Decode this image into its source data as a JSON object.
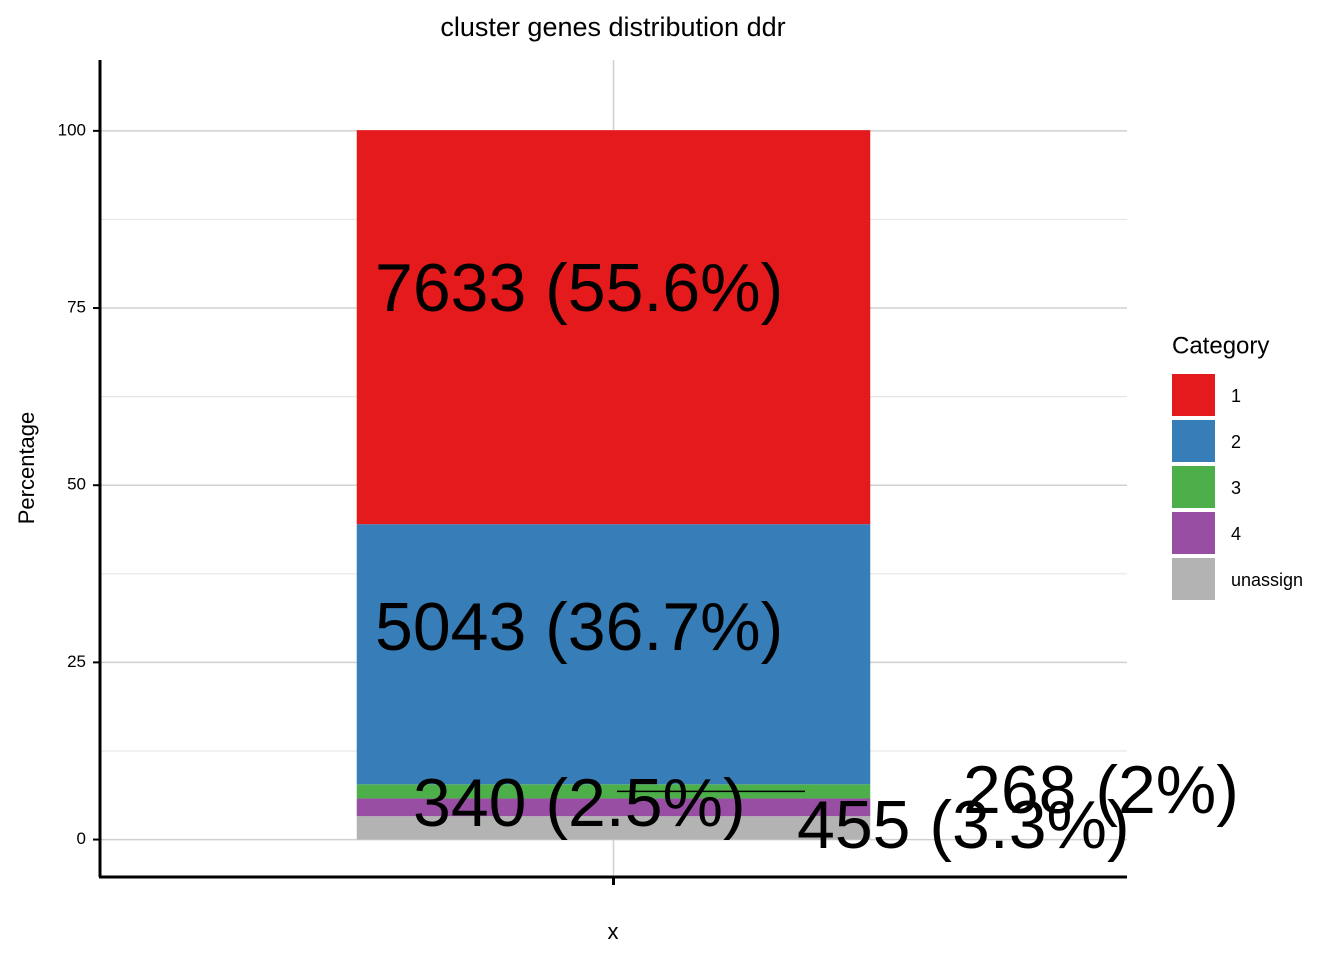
{
  "chart_data": {
    "type": "stacked_bar",
    "title": "cluster genes distribution ddr",
    "x_label": "x",
    "y_label": "Percentage",
    "categories": [
      null
    ],
    "series": [
      {
        "name": "1",
        "color": "#e41a1c",
        "values": [
          55.6
        ],
        "value_labels": [
          "7633 (55.6%)"
        ]
      },
      {
        "name": "2",
        "color": "#377eb8",
        "values": [
          36.7
        ],
        "value_labels": [
          "5043 (36.7%)"
        ]
      },
      {
        "name": "3",
        "color": "#4daf4a",
        "values": [
          2
        ],
        "value_labels": [
          "268 (2%)"
        ]
      },
      {
        "name": "4",
        "color": "#984ea3",
        "values": [
          2.5
        ],
        "value_labels": [
          "340 (2.5%)"
        ]
      },
      {
        "name": "unassign",
        "color": "#b3b3b3",
        "values": [
          3.3
        ],
        "value_labels": [
          "455 (3.3%)"
        ]
      }
    ],
    "ylim": [
      -5,
      110
    ],
    "yticks": [
      0,
      25,
      50,
      75,
      100
    ],
    "grid": true,
    "legend_title": "Category",
    "legend_position": "right"
  }
}
